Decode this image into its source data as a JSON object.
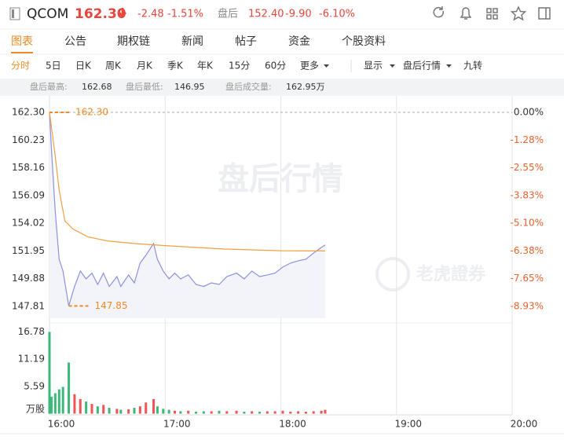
{
  "header": {
    "symbol": "QCOM",
    "price": "162.30",
    "change": "-2.48",
    "change_pct": "-1.51%",
    "after_label": "盘后",
    "after_price": "152.40",
    "after_change": "-9.90",
    "after_change_pct": "-6.10%"
  },
  "tabs": {
    "items": [
      "图表",
      "公告",
      "期权链",
      "新闻",
      "帖子",
      "资金",
      "个股资料"
    ],
    "active": 0
  },
  "periods": {
    "items": [
      "分时",
      "5日",
      "日K",
      "周K",
      "月K",
      "季K",
      "年K",
      "15分",
      "60分",
      "更多"
    ],
    "active": 0,
    "options": [
      "显示",
      "盘后行情",
      "九转"
    ]
  },
  "stats": [
    {
      "label": "盘后最高:",
      "value": "162.68"
    },
    {
      "label": "盘后最低:",
      "value": "146.95"
    },
    {
      "label": "盘后成交量:",
      "value": "162.95万"
    }
  ],
  "watermarks": [
    "盘后行情",
    "老虎證券"
  ],
  "chart_data": [
    {
      "type": "line",
      "xlim": [
        "16:00",
        "20:00"
      ],
      "xticks": [
        "16:00",
        "17:00",
        "18:00",
        "19:00",
        "20:00"
      ],
      "grid": "x",
      "ylim": [
        146.93,
        163.18
      ],
      "yticks": [
        {
          "value": 162.3,
          "label": "162.30"
        },
        160.23,
        158.16,
        156.09,
        154.02,
        151.95,
        149.88,
        147.81
      ],
      "y2lim": [
        -9.47,
        0.54
      ],
      "y2ticks": [
        {
          "value": 0,
          "label": "0.00%"
        },
        {
          "value": -1.28,
          "label": "-1.28%"
        },
        {
          "value": -2.55,
          "label": "-2.55%"
        },
        {
          "value": -3.83,
          "label": "-3.83%"
        },
        {
          "value": -5.1,
          "label": "-5.10%"
        },
        {
          "value": -6.38,
          "label": "-6.38%"
        },
        {
          "value": -7.65,
          "label": "-7.65%"
        },
        {
          "value": -8.93,
          "label": "-8.93%"
        }
      ],
      "baseline": 162.3,
      "series": [
        {
          "color": "#8c90e0",
          "fill": "#f3f4fa",
          "x": [
            "16:00",
            "16:01",
            "16:03",
            "16:05",
            "16:07",
            "16:10",
            "16:13",
            "16:16",
            "16:19",
            "16:22",
            "16:25",
            "16:28",
            "16:31",
            "16:35",
            "16:37",
            "16:41",
            "16:44",
            "16:47",
            "16:50",
            "16:54",
            "16:56",
            "16:59",
            "17:02",
            "17:05",
            "17:08",
            "17:12",
            "17:16",
            "17:20",
            "17:24",
            "17:28",
            "17:32",
            "17:37",
            "17:41",
            "17:45",
            "17:49",
            "17:53",
            "17:57",
            "18:01",
            "18:05",
            "18:09",
            "18:13",
            "18:17",
            "18:21",
            "18:23"
          ],
          "values": [
            162.3,
            159.54,
            154.85,
            151.33,
            150.45,
            147.85,
            149.3,
            150.45,
            149.87,
            150.3,
            149.45,
            150.3,
            149.3,
            150.04,
            149.3,
            150.16,
            149.57,
            151.04,
            151.63,
            152.51,
            151.33,
            150.45,
            149.87,
            150.3,
            149.87,
            150.16,
            149.45,
            149.3,
            149.57,
            149.45,
            150.04,
            150.3,
            149.87,
            150.45,
            150.04,
            150.16,
            150.3,
            150.75,
            151.04,
            151.22,
            151.33,
            151.8,
            152.21,
            152.4
          ]
        },
        {
          "color": "#f0a040",
          "x": [
            "16:00",
            "16:03",
            "16:05",
            "16:08",
            "16:12",
            "16:20",
            "16:30",
            "16:45",
            "17:00",
            "17:30",
            "18:00",
            "18:23"
          ],
          "values": [
            162.3,
            159.0,
            156.5,
            154.2,
            153.6,
            153.0,
            152.7,
            152.5,
            152.35,
            152.1,
            151.97,
            151.95
          ]
        }
      ],
      "annotations": [
        {
          "text": "162.30",
          "x": "16:00",
          "y": 162.3,
          "color": "#f08a24"
        },
        {
          "text": "147.85",
          "x": "16:10",
          "y": 147.85,
          "color": "#f08a24"
        }
      ]
    },
    {
      "type": "bar",
      "x": [
        "16:00",
        "16:01",
        "16:03",
        "16:05",
        "16:07",
        "16:10",
        "16:13",
        "16:16",
        "16:19",
        "16:22",
        "16:25",
        "16:28",
        "16:31",
        "16:35",
        "16:37",
        "16:41",
        "16:44",
        "16:47",
        "16:50",
        "16:54",
        "16:56",
        "16:59",
        "17:02",
        "17:05",
        "17:08",
        "17:12",
        "17:16",
        "17:20",
        "17:24",
        "17:28",
        "17:32",
        "17:37",
        "17:41",
        "17:45",
        "17:49",
        "17:53",
        "17:57",
        "18:01",
        "18:05",
        "18:09",
        "18:13",
        "18:17",
        "18:21",
        "18:23"
      ],
      "values": [
        16.78,
        3.5,
        4.2,
        5.0,
        5.5,
        10.5,
        4.0,
        3.0,
        2.5,
        2.0,
        1.5,
        1.8,
        1.2,
        1.0,
        0.8,
        0.9,
        1.2,
        1.5,
        2.3,
        3.0,
        1.5,
        1.0,
        0.8,
        0.6,
        0.5,
        0.6,
        0.4,
        0.5,
        0.5,
        0.6,
        0.5,
        0.6,
        0.4,
        0.5,
        0.4,
        0.5,
        0.5,
        0.6,
        0.4,
        0.5,
        0.4,
        0.5,
        0.6,
        0.8
      ],
      "ylim": [
        0,
        17.5
      ],
      "yticks": [
        16.78,
        11.19,
        5.59
      ],
      "unit_label": "万股",
      "up_color": "#f05555",
      "down_color": "#3cb878"
    }
  ]
}
